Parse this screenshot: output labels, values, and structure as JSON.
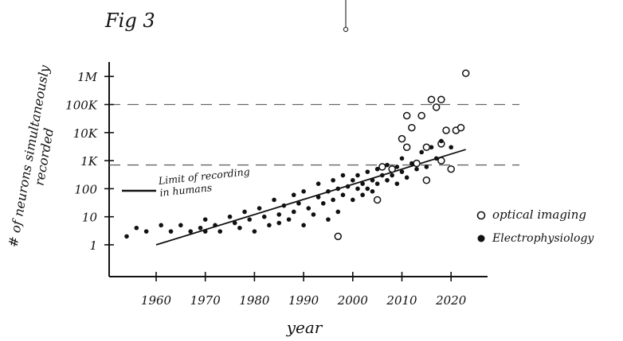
{
  "figure_label": "Fig 3",
  "chart_data": {
    "type": "scatter",
    "title": "",
    "xlabel": "year",
    "ylabel": "# of neurons simultaneously recorded",
    "yscale": "log",
    "xlim": [
      1952,
      2026
    ],
    "ylim": [
      0.3,
      3000000
    ],
    "grid": false,
    "x_ticks": [
      1960,
      1970,
      1980,
      1990,
      2000,
      2010,
      2020
    ],
    "x_tick_labels": [
      "1960",
      "1970",
      "1980",
      "1990",
      "2000",
      "2010",
      "2020"
    ],
    "y_ticks": [
      1,
      10,
      100,
      1000,
      10000,
      100000,
      1000000
    ],
    "y_tick_labels": [
      "1",
      "10",
      "100",
      "1K",
      "10K",
      "100K",
      "1M"
    ],
    "legend_position": "right",
    "legend": [
      {
        "label": "optical imaging",
        "marker": "open-circle"
      },
      {
        "label": "Electrophysiology",
        "marker": "filled-circle"
      }
    ],
    "series": [
      {
        "name": "optical imaging",
        "marker": "open-circle",
        "points": [
          [
            1997,
            2
          ],
          [
            2005,
            40
          ],
          [
            2006,
            600
          ],
          [
            2008,
            500
          ],
          [
            2010,
            6000
          ],
          [
            2011,
            3000
          ],
          [
            2011,
            40000
          ],
          [
            2012,
            15000
          ],
          [
            2013,
            800
          ],
          [
            2014,
            40000
          ],
          [
            2015,
            200
          ],
          [
            2015,
            3000
          ],
          [
            2016,
            150000
          ],
          [
            2017,
            80000
          ],
          [
            2018,
            1000
          ],
          [
            2018,
            150000
          ],
          [
            2018,
            4000
          ],
          [
            2019,
            12000
          ],
          [
            2020,
            500
          ],
          [
            2021,
            12000
          ],
          [
            2022,
            15000
          ],
          [
            2023,
            1300000
          ]
        ]
      },
      {
        "name": "Electrophysiology",
        "marker": "filled-circle",
        "points": [
          [
            1954,
            2
          ],
          [
            1956,
            4
          ],
          [
            1958,
            3
          ],
          [
            1961,
            5
          ],
          [
            1963,
            3
          ],
          [
            1965,
            5
          ],
          [
            1967,
            3
          ],
          [
            1969,
            4
          ],
          [
            1970,
            8
          ],
          [
            1970,
            3
          ],
          [
            1972,
            5
          ],
          [
            1973,
            3
          ],
          [
            1975,
            10
          ],
          [
            1976,
            6
          ],
          [
            1977,
            4
          ],
          [
            1978,
            15
          ],
          [
            1979,
            8
          ],
          [
            1980,
            3
          ],
          [
            1981,
            20
          ],
          [
            1982,
            10
          ],
          [
            1983,
            5
          ],
          [
            1984,
            40
          ],
          [
            1985,
            12
          ],
          [
            1985,
            6
          ],
          [
            1986,
            25
          ],
          [
            1987,
            8
          ],
          [
            1988,
            60
          ],
          [
            1988,
            15
          ],
          [
            1989,
            30
          ],
          [
            1990,
            5
          ],
          [
            1990,
            80
          ],
          [
            1991,
            20
          ],
          [
            1992,
            12
          ],
          [
            1993,
            50
          ],
          [
            1993,
            150
          ],
          [
            1994,
            30
          ],
          [
            1995,
            80
          ],
          [
            1995,
            8
          ],
          [
            1996,
            200
          ],
          [
            1996,
            40
          ],
          [
            1997,
            100
          ],
          [
            1997,
            15
          ],
          [
            1998,
            60
          ],
          [
            1998,
            300
          ],
          [
            1999,
            120
          ],
          [
            2000,
            200
          ],
          [
            2000,
            40
          ],
          [
            2001,
            100
          ],
          [
            2001,
            300
          ],
          [
            2002,
            150
          ],
          [
            2002,
            60
          ],
          [
            2003,
            400
          ],
          [
            2003,
            100
          ],
          [
            2004,
            200
          ],
          [
            2004,
            80
          ],
          [
            2005,
            500
          ],
          [
            2005,
            150
          ],
          [
            2006,
            300
          ],
          [
            2007,
            200
          ],
          [
            2007,
            700
          ],
          [
            2008,
            300
          ],
          [
            2009,
            150
          ],
          [
            2009,
            600
          ],
          [
            2010,
            400
          ],
          [
            2010,
            1200
          ],
          [
            2011,
            250
          ],
          [
            2012,
            800
          ],
          [
            2013,
            500
          ],
          [
            2014,
            2000
          ],
          [
            2015,
            600
          ],
          [
            2016,
            3000
          ],
          [
            2017,
            1200
          ],
          [
            2018,
            5000
          ],
          [
            2020,
            3000
          ]
        ]
      }
    ],
    "trend_line": {
      "x": [
        1960,
        2023
      ],
      "y": [
        1,
        2500
      ]
    },
    "reference_lines": [
      {
        "y": 100000,
        "style": "dashed",
        "label": ""
      },
      {
        "y": 700,
        "style": "dashed",
        "label": "Limit of recording in humans"
      }
    ]
  }
}
